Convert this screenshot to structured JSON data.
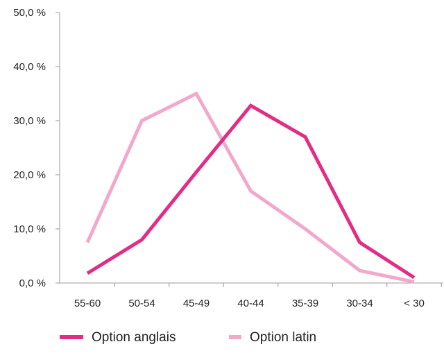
{
  "chart_data": {
    "type": "line",
    "title": "",
    "xlabel": "",
    "ylabel": "",
    "categories": [
      "55-60",
      "50-54",
      "45-49",
      "40-44",
      "35-39",
      "30-34",
      "< 30"
    ],
    "ylim": [
      0,
      50
    ],
    "yticks": [
      0,
      10,
      20,
      30,
      40,
      50
    ],
    "ytick_labels": [
      "0,0 %",
      "10,0 %",
      "20,0 %",
      "30,0 %",
      "40,0 %",
      "50,0 %"
    ],
    "grid": false,
    "legend_position": "bottom-left",
    "series": [
      {
        "name": "Option anglais",
        "color": "#e32d85",
        "values": [
          1.8,
          8.0,
          20.5,
          32.8,
          27.0,
          7.5,
          1.0
        ]
      },
      {
        "name": "Option latin",
        "color": "#f2a8cb",
        "values": [
          7.5,
          30.0,
          35.0,
          17.0,
          10.0,
          2.3,
          0.2
        ]
      }
    ]
  }
}
